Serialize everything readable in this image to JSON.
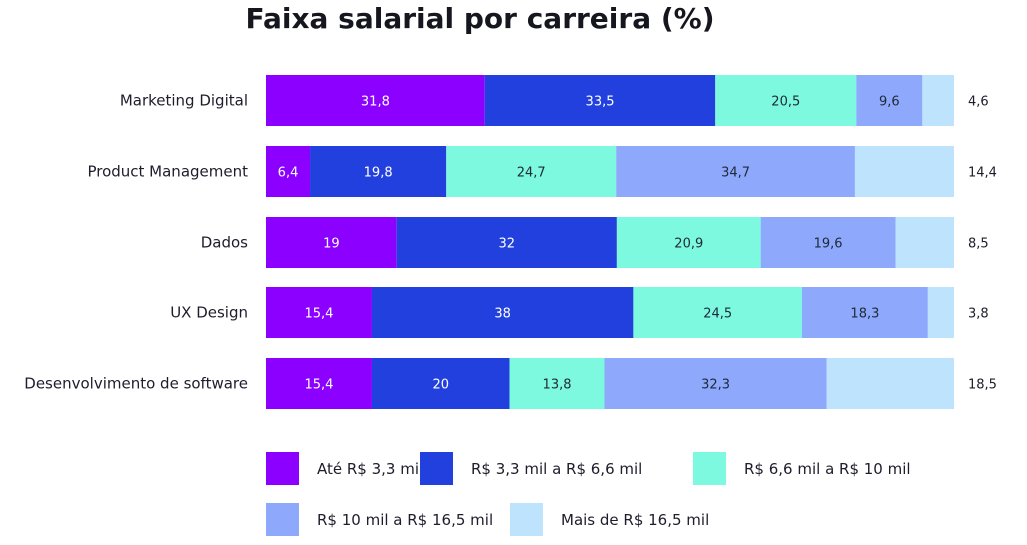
{
  "chart_data": {
    "type": "bar",
    "orientation": "horizontal",
    "stacked": true,
    "title": "Faixa salarial por carreira (%)",
    "categories": [
      "Marketing Digital",
      "Product Management",
      "Dados",
      "UX Design",
      "Desenvolvimento de software"
    ],
    "series": [
      {
        "name": "Até R$ 3,3 mil",
        "color": "#8B00FF",
        "values": [
          31.8,
          6.4,
          19,
          15.4,
          15.4
        ]
      },
      {
        "name": "R$ 3,3 mil a R$ 6,6 mil",
        "color": "#2240DD",
        "values": [
          33.5,
          19.8,
          32,
          38,
          20
        ]
      },
      {
        "name": "R$ 6,6 mil a R$ 10 mil",
        "color": "#7DF9E0",
        "values": [
          20.5,
          24.7,
          20.9,
          24.5,
          13.8
        ]
      },
      {
        "name": "R$ 10 mil a R$ 16,5 mil",
        "color": "#8EA8FC",
        "values": [
          9.6,
          34.7,
          19.6,
          18.3,
          32.3
        ]
      },
      {
        "name": "Mais de R$ 16,5 mil",
        "color": "#BDE3FD",
        "values": [
          4.6,
          14.4,
          8.5,
          3.8,
          18.5
        ]
      }
    ],
    "xlim": [
      0,
      100
    ],
    "grid": false,
    "legend_position": "bottom"
  }
}
